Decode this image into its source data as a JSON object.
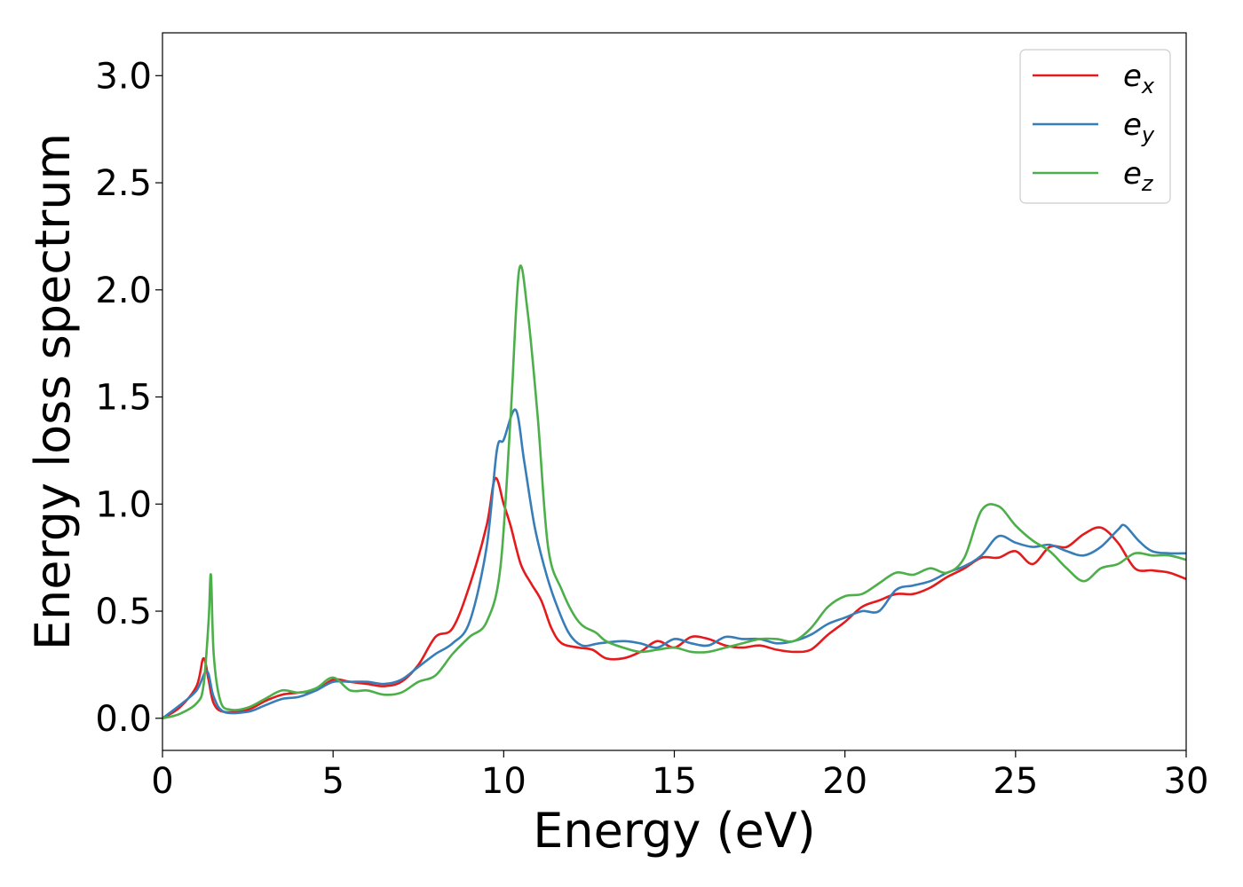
{
  "chart_data": {
    "type": "line",
    "title": "",
    "xlabel": "Energy (eV)",
    "ylabel": "Energy loss spectrum",
    "xlim": [
      0,
      30
    ],
    "ylim": [
      -0.15,
      3.2
    ],
    "xticks": [
      0,
      5,
      10,
      15,
      20,
      25,
      30
    ],
    "xtick_labels": [
      "0",
      "5",
      "10",
      "15",
      "20",
      "25",
      "30"
    ],
    "yticks": [
      0.0,
      0.5,
      1.0,
      1.5,
      2.0,
      2.5,
      3.0
    ],
    "ytick_labels": [
      "0.0",
      "0.5",
      "1.0",
      "1.5",
      "2.0",
      "2.5",
      "3.0"
    ],
    "grid": false,
    "legend_position": "top-right",
    "series": [
      {
        "name": "e_x",
        "color": "#e41a1c",
        "points": [
          [
            0,
            0
          ],
          [
            0.5,
            0.05
          ],
          [
            1.0,
            0.15
          ],
          [
            1.2,
            0.28
          ],
          [
            1.35,
            0.18
          ],
          [
            1.5,
            0.07
          ],
          [
            1.8,
            0.03
          ],
          [
            2.5,
            0.04
          ],
          [
            3.0,
            0.08
          ],
          [
            3.5,
            0.11
          ],
          [
            4.0,
            0.12
          ],
          [
            4.5,
            0.13
          ],
          [
            5.0,
            0.18
          ],
          [
            5.5,
            0.17
          ],
          [
            6.0,
            0.16
          ],
          [
            6.5,
            0.15
          ],
          [
            7.0,
            0.17
          ],
          [
            7.5,
            0.25
          ],
          [
            8.0,
            0.38
          ],
          [
            8.5,
            0.42
          ],
          [
            9.0,
            0.62
          ],
          [
            9.5,
            0.9
          ],
          [
            9.75,
            1.12
          ],
          [
            10.0,
            1.0
          ],
          [
            10.2,
            0.9
          ],
          [
            10.5,
            0.72
          ],
          [
            10.8,
            0.63
          ],
          [
            11.1,
            0.55
          ],
          [
            11.4,
            0.42
          ],
          [
            11.7,
            0.35
          ],
          [
            12.2,
            0.33
          ],
          [
            12.6,
            0.32
          ],
          [
            13.0,
            0.28
          ],
          [
            13.5,
            0.28
          ],
          [
            14.0,
            0.31
          ],
          [
            14.5,
            0.36
          ],
          [
            15.0,
            0.33
          ],
          [
            15.5,
            0.38
          ],
          [
            16.0,
            0.37
          ],
          [
            16.5,
            0.34
          ],
          [
            17.0,
            0.33
          ],
          [
            17.5,
            0.34
          ],
          [
            18.0,
            0.32
          ],
          [
            18.5,
            0.31
          ],
          [
            19.0,
            0.32
          ],
          [
            19.5,
            0.39
          ],
          [
            20.0,
            0.45
          ],
          [
            20.5,
            0.52
          ],
          [
            21.0,
            0.55
          ],
          [
            21.5,
            0.58
          ],
          [
            22.0,
            0.58
          ],
          [
            22.5,
            0.61
          ],
          [
            23.0,
            0.66
          ],
          [
            23.5,
            0.7
          ],
          [
            24.0,
            0.75
          ],
          [
            24.5,
            0.75
          ],
          [
            25.0,
            0.78
          ],
          [
            25.5,
            0.72
          ],
          [
            26.0,
            0.8
          ],
          [
            26.5,
            0.8
          ],
          [
            27.0,
            0.86
          ],
          [
            27.5,
            0.89
          ],
          [
            28.0,
            0.82
          ],
          [
            28.5,
            0.7
          ],
          [
            29.0,
            0.69
          ],
          [
            29.5,
            0.68
          ],
          [
            30.0,
            0.65
          ]
        ]
      },
      {
        "name": "e_y",
        "color": "#377eb8",
        "points": [
          [
            0,
            0
          ],
          [
            0.5,
            0.06
          ],
          [
            1.0,
            0.13
          ],
          [
            1.3,
            0.22
          ],
          [
            1.5,
            0.1
          ],
          [
            1.8,
            0.03
          ],
          [
            2.5,
            0.03
          ],
          [
            3.0,
            0.06
          ],
          [
            3.5,
            0.09
          ],
          [
            4.0,
            0.1
          ],
          [
            4.5,
            0.13
          ],
          [
            5.0,
            0.17
          ],
          [
            5.5,
            0.17
          ],
          [
            6.0,
            0.17
          ],
          [
            6.5,
            0.16
          ],
          [
            7.0,
            0.18
          ],
          [
            7.5,
            0.24
          ],
          [
            8.0,
            0.3
          ],
          [
            8.5,
            0.35
          ],
          [
            9.0,
            0.45
          ],
          [
            9.5,
            0.8
          ],
          [
            9.8,
            1.25
          ],
          [
            10.0,
            1.3
          ],
          [
            10.35,
            1.44
          ],
          [
            10.6,
            1.2
          ],
          [
            10.9,
            0.9
          ],
          [
            11.2,
            0.7
          ],
          [
            11.5,
            0.55
          ],
          [
            11.9,
            0.4
          ],
          [
            12.3,
            0.34
          ],
          [
            12.8,
            0.35
          ],
          [
            13.5,
            0.36
          ],
          [
            14.0,
            0.35
          ],
          [
            14.5,
            0.33
          ],
          [
            15.0,
            0.37
          ],
          [
            15.5,
            0.35
          ],
          [
            16.0,
            0.34
          ],
          [
            16.5,
            0.38
          ],
          [
            17.0,
            0.37
          ],
          [
            17.5,
            0.37
          ],
          [
            18.0,
            0.35
          ],
          [
            18.5,
            0.36
          ],
          [
            19.0,
            0.39
          ],
          [
            19.5,
            0.44
          ],
          [
            20.0,
            0.47
          ],
          [
            20.5,
            0.5
          ],
          [
            21.0,
            0.5
          ],
          [
            21.5,
            0.6
          ],
          [
            22.0,
            0.62
          ],
          [
            22.5,
            0.64
          ],
          [
            23.0,
            0.68
          ],
          [
            23.5,
            0.71
          ],
          [
            24.0,
            0.76
          ],
          [
            24.5,
            0.85
          ],
          [
            25.0,
            0.82
          ],
          [
            25.5,
            0.8
          ],
          [
            26.0,
            0.81
          ],
          [
            26.5,
            0.78
          ],
          [
            27.0,
            0.76
          ],
          [
            27.5,
            0.8
          ],
          [
            28.0,
            0.88
          ],
          [
            28.2,
            0.9
          ],
          [
            28.6,
            0.83
          ],
          [
            29.0,
            0.78
          ],
          [
            29.5,
            0.77
          ],
          [
            30.0,
            0.77
          ]
        ]
      },
      {
        "name": "e_z",
        "color": "#4daf4a",
        "points": [
          [
            0,
            0
          ],
          [
            0.5,
            0.02
          ],
          [
            1.0,
            0.07
          ],
          [
            1.2,
            0.15
          ],
          [
            1.35,
            0.45
          ],
          [
            1.42,
            0.67
          ],
          [
            1.5,
            0.3
          ],
          [
            1.7,
            0.08
          ],
          [
            2.0,
            0.04
          ],
          [
            2.5,
            0.05
          ],
          [
            3.0,
            0.09
          ],
          [
            3.5,
            0.13
          ],
          [
            4.0,
            0.12
          ],
          [
            4.5,
            0.14
          ],
          [
            5.0,
            0.19
          ],
          [
            5.5,
            0.13
          ],
          [
            6.0,
            0.13
          ],
          [
            6.5,
            0.11
          ],
          [
            7.0,
            0.12
          ],
          [
            7.5,
            0.17
          ],
          [
            8.0,
            0.2
          ],
          [
            8.5,
            0.3
          ],
          [
            9.0,
            0.38
          ],
          [
            9.5,
            0.45
          ],
          [
            9.9,
            0.7
          ],
          [
            10.2,
            1.4
          ],
          [
            10.45,
            2.09
          ],
          [
            10.7,
            1.9
          ],
          [
            11.0,
            1.4
          ],
          [
            11.3,
            0.8
          ],
          [
            11.7,
            0.6
          ],
          [
            12.2,
            0.45
          ],
          [
            12.7,
            0.4
          ],
          [
            13.0,
            0.36
          ],
          [
            13.5,
            0.33
          ],
          [
            14.0,
            0.31
          ],
          [
            14.5,
            0.32
          ],
          [
            15.0,
            0.33
          ],
          [
            15.5,
            0.31
          ],
          [
            16.0,
            0.31
          ],
          [
            16.5,
            0.33
          ],
          [
            17.0,
            0.35
          ],
          [
            17.5,
            0.37
          ],
          [
            18.0,
            0.37
          ],
          [
            18.5,
            0.36
          ],
          [
            19.0,
            0.42
          ],
          [
            19.5,
            0.52
          ],
          [
            20.0,
            0.57
          ],
          [
            20.5,
            0.58
          ],
          [
            21.0,
            0.63
          ],
          [
            21.5,
            0.68
          ],
          [
            22.0,
            0.67
          ],
          [
            22.5,
            0.7
          ],
          [
            23.0,
            0.68
          ],
          [
            23.5,
            0.75
          ],
          [
            24.0,
            0.97
          ],
          [
            24.5,
            0.99
          ],
          [
            25.0,
            0.9
          ],
          [
            25.5,
            0.83
          ],
          [
            26.0,
            0.78
          ],
          [
            26.5,
            0.7
          ],
          [
            27.0,
            0.64
          ],
          [
            27.5,
            0.7
          ],
          [
            28.0,
            0.72
          ],
          [
            28.5,
            0.77
          ],
          [
            29.0,
            0.76
          ],
          [
            29.5,
            0.76
          ],
          [
            30.0,
            0.74
          ]
        ]
      }
    ],
    "legend": [
      {
        "base": "e",
        "sub": "x",
        "color": "#e41a1c"
      },
      {
        "base": "e",
        "sub": "y",
        "color": "#377eb8"
      },
      {
        "base": "e",
        "sub": "z",
        "color": "#4daf4a"
      }
    ]
  }
}
